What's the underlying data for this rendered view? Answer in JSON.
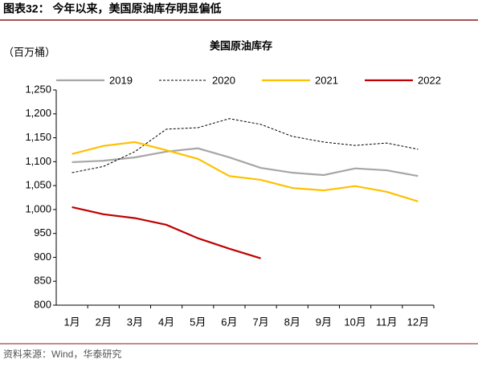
{
  "header": "图表32：  今年以来，美国原油库存明显偏低",
  "source": "资料来源：Wind，华泰研究",
  "chart_data": {
    "type": "line",
    "title": "美国原油库存",
    "y_label": "（百万桶）",
    "categories": [
      "1月",
      "2月",
      "3月",
      "4月",
      "5月",
      "6月",
      "7月",
      "8月",
      "9月",
      "10月",
      "11月",
      "12月"
    ],
    "series": [
      {
        "name": "2019",
        "color": "#a6a6a6",
        "linestyle": "solid",
        "values": [
          1099,
          1102,
          1109,
          1121,
          1128,
          1109,
          1087,
          1077,
          1072,
          1086,
          1082,
          1070
        ]
      },
      {
        "name": "2020",
        "color": "#000000",
        "linestyle": "dashed",
        "values": [
          1077,
          1090,
          1121,
          1168,
          1171,
          1190,
          1178,
          1153,
          1141,
          1134,
          1139,
          1126
        ]
      },
      {
        "name": "2021",
        "color": "#ffc000",
        "linestyle": "solid",
        "values": [
          1116,
          1133,
          1141,
          1124,
          1106,
          1070,
          1062,
          1045,
          1040,
          1049,
          1037,
          1017
        ]
      },
      {
        "name": "2022",
        "color": "#c00000",
        "linestyle": "solid",
        "values": [
          1005,
          990,
          982,
          968,
          940,
          918,
          898,
          null,
          null,
          null,
          null,
          null
        ]
      }
    ],
    "ylim": [
      800,
      1250
    ],
    "yticks": [
      800,
      850,
      900,
      950,
      {
        "value": 1000,
        "label": "1,000"
      },
      {
        "value": 1050,
        "label": "1,050"
      },
      {
        "value": 1100,
        "label": "1,100"
      },
      {
        "value": 1150,
        "label": "1,150"
      },
      {
        "value": 1200,
        "label": "1,200"
      },
      {
        "value": 1250,
        "label": "1,250"
      }
    ],
    "grid": false
  }
}
